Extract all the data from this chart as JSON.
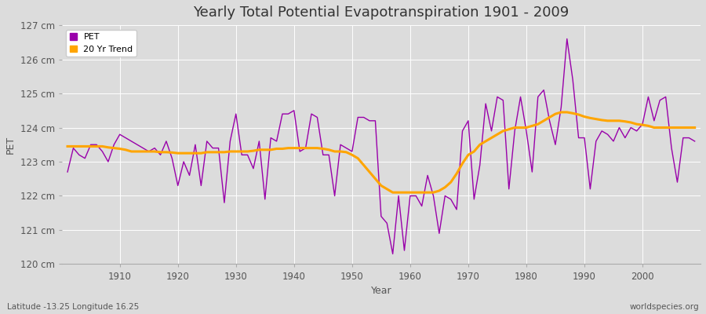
{
  "title": "Yearly Total Potential Evapotranspiration 1901 - 2009",
  "xlabel": "Year",
  "ylabel": "PET",
  "bottom_left_label": "Latitude -13.25 Longitude 16.25",
  "bottom_right_label": "worldspecies.org",
  "pet_color": "#9900aa",
  "trend_color": "#ffa500",
  "background_color": "#dcdcdc",
  "plot_bg_color": "#dcdcdc",
  "grid_color": "#ffffff",
  "text_color": "#555555",
  "ylim": [
    120,
    127
  ],
  "yticks": [
    120,
    121,
    122,
    123,
    124,
    125,
    126,
    127
  ],
  "ytick_labels": [
    "120 cm",
    "121 cm",
    "122 cm",
    "123 cm",
    "124 cm",
    "125 cm",
    "126 cm",
    "127 cm"
  ],
  "xtick_positions": [
    1910,
    1920,
    1930,
    1940,
    1950,
    1960,
    1970,
    1980,
    1990,
    2000
  ],
  "xlim": [
    1900,
    2010
  ],
  "years": [
    1901,
    1902,
    1903,
    1904,
    1905,
    1906,
    1907,
    1908,
    1909,
    1910,
    1911,
    1912,
    1913,
    1914,
    1915,
    1916,
    1917,
    1918,
    1919,
    1920,
    1921,
    1922,
    1923,
    1924,
    1925,
    1926,
    1927,
    1928,
    1929,
    1930,
    1931,
    1932,
    1933,
    1934,
    1935,
    1936,
    1937,
    1938,
    1939,
    1940,
    1941,
    1942,
    1943,
    1944,
    1945,
    1946,
    1947,
    1948,
    1949,
    1950,
    1951,
    1952,
    1953,
    1954,
    1955,
    1956,
    1957,
    1958,
    1959,
    1960,
    1961,
    1962,
    1963,
    1964,
    1965,
    1966,
    1967,
    1968,
    1969,
    1970,
    1971,
    1972,
    1973,
    1974,
    1975,
    1976,
    1977,
    1978,
    1979,
    1980,
    1981,
    1982,
    1983,
    1984,
    1985,
    1986,
    1987,
    1988,
    1989,
    1990,
    1991,
    1992,
    1993,
    1994,
    1995,
    1996,
    1997,
    1998,
    1999,
    2000,
    2001,
    2002,
    2003,
    2004,
    2005,
    2006,
    2007,
    2008,
    2009
  ],
  "pet_values": [
    122.7,
    123.4,
    123.2,
    123.1,
    123.5,
    123.5,
    123.3,
    123.0,
    123.5,
    123.8,
    123.7,
    123.6,
    123.5,
    123.4,
    123.3,
    123.4,
    123.2,
    123.6,
    123.1,
    122.3,
    123.0,
    122.6,
    123.5,
    122.3,
    123.6,
    123.4,
    123.4,
    121.8,
    123.6,
    124.4,
    123.2,
    123.2,
    122.8,
    123.6,
    121.9,
    123.7,
    123.6,
    124.4,
    124.4,
    124.5,
    123.3,
    123.4,
    124.4,
    124.3,
    123.2,
    123.2,
    122.0,
    123.5,
    123.4,
    123.3,
    124.3,
    124.3,
    124.2,
    124.2,
    121.4,
    121.2,
    120.3,
    122.0,
    120.4,
    122.0,
    122.0,
    121.7,
    122.6,
    122.0,
    120.9,
    122.0,
    121.9,
    121.6,
    123.9,
    124.2,
    121.9,
    122.9,
    124.7,
    123.9,
    124.9,
    124.8,
    122.2,
    123.9,
    124.9,
    123.9,
    122.7,
    124.9,
    125.1,
    124.2,
    123.5,
    124.6,
    126.6,
    125.4,
    123.7,
    123.7,
    122.2,
    123.6,
    123.9,
    123.8,
    123.6,
    124.0,
    123.7,
    124.0,
    123.9,
    124.1,
    124.9,
    124.2,
    124.8,
    124.9,
    123.4,
    122.4,
    123.7,
    123.7,
    123.6
  ],
  "trend_values": [
    123.45,
    123.45,
    123.45,
    123.45,
    123.45,
    123.45,
    123.45,
    123.42,
    123.4,
    123.38,
    123.35,
    123.3,
    123.3,
    123.3,
    123.3,
    123.3,
    123.28,
    123.28,
    123.27,
    123.25,
    123.25,
    123.25,
    123.25,
    123.25,
    123.28,
    123.28,
    123.28,
    123.28,
    123.3,
    123.3,
    123.3,
    123.3,
    123.32,
    123.35,
    123.35,
    123.35,
    123.38,
    123.38,
    123.4,
    123.4,
    123.4,
    123.4,
    123.4,
    123.4,
    123.38,
    123.35,
    123.3,
    123.3,
    123.28,
    123.2,
    123.1,
    122.9,
    122.7,
    122.5,
    122.3,
    122.2,
    122.1,
    122.1,
    122.1,
    122.1,
    122.1,
    122.1,
    122.1,
    122.1,
    122.15,
    122.25,
    122.4,
    122.65,
    122.95,
    123.2,
    123.3,
    123.5,
    123.6,
    123.7,
    123.8,
    123.9,
    123.95,
    124.0,
    124.0,
    124.0,
    124.05,
    124.1,
    124.2,
    124.3,
    124.4,
    124.45,
    124.45,
    124.42,
    124.38,
    124.32,
    124.28,
    124.25,
    124.22,
    124.2,
    124.2,
    124.2,
    124.18,
    124.15,
    124.1,
    124.08,
    124.05,
    124.0,
    124.0,
    124.0,
    124.0,
    124.0,
    124.0,
    124.0,
    124.0
  ]
}
